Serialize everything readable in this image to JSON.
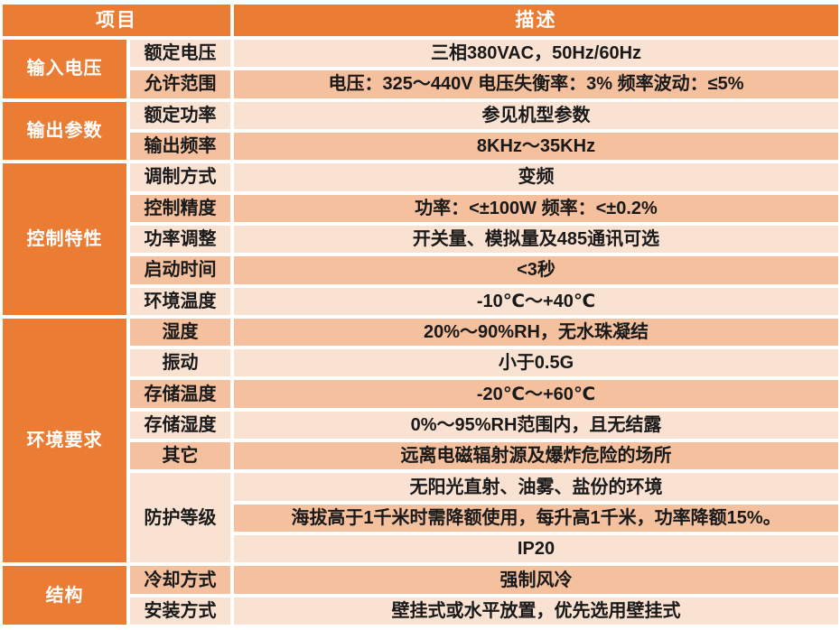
{
  "table": {
    "header": {
      "item": "项目",
      "description": "描述"
    },
    "colors": {
      "accent_orange": "#eb7c34",
      "row_light": "#fae2d3",
      "row_dark": "#f5c09d",
      "gridline": "#ffffff",
      "text_dark": "#191919",
      "text_on_orange": "#ffffff"
    },
    "groups": [
      {
        "name": "输入电压",
        "rows": [
          {
            "label": "额定电压",
            "value": "三相380VAC，50Hz/60Hz"
          },
          {
            "label": "允许范围",
            "value": "电压：325～440V 电压失衡率：3% 频率波动：≤5%"
          }
        ]
      },
      {
        "name": "输出参数",
        "rows": [
          {
            "label": "额定功率",
            "value": "参见机型参数"
          },
          {
            "label": "输出频率",
            "value": "8KHz～35KHz"
          }
        ]
      },
      {
        "name": "控制特性",
        "rows": [
          {
            "label": "调制方式",
            "value": "变频"
          },
          {
            "label": "控制精度",
            "value": "功率：<±100W 频率：<±0.2%"
          },
          {
            "label": "功率调整",
            "value": "开关量、模拟量及485通讯可选"
          },
          {
            "label": "启动时间",
            "value": "<3秒"
          },
          {
            "label": "环境温度",
            "value": "-10℃～+40℃"
          }
        ]
      },
      {
        "name": "环境要求",
        "rows": [
          {
            "label": "湿度",
            "value": "20%～90%RH，无水珠凝结"
          },
          {
            "label": "振动",
            "value": "小于0.5G"
          },
          {
            "label": "存储温度",
            "value": "-20℃～+60℃"
          },
          {
            "label": "存储湿度",
            "value": "0%～95%RH范围内，且无结露"
          },
          {
            "label": "其它",
            "value": "远离电磁辐射源及爆炸危险的场所"
          },
          {
            "label": "防护等级",
            "values": [
              "无阳光直射、油雾、盐份的环境",
              "海拔高于1千米时需降额使用，每升高1千米，功率降额15%。",
              "IP20"
            ]
          }
        ]
      },
      {
        "name": "结构",
        "rows": [
          {
            "label": "冷却方式",
            "value": "强制风冷"
          },
          {
            "label": "安装方式",
            "value": "壁挂式或水平放置，优先选用壁挂式"
          }
        ]
      }
    ]
  }
}
